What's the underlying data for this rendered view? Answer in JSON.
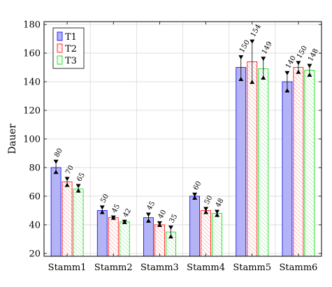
{
  "chart_data": {
    "type": "bar",
    "title": "",
    "xlabel": "",
    "ylabel": "Dauer",
    "categories": [
      "Stamm1",
      "Stamm2",
      "Stamm3",
      "Stamm4",
      "Stamm5",
      "Stamm6"
    ],
    "ylim": [
      18,
      182
    ],
    "yticks": [
      20,
      40,
      60,
      80,
      100,
      120,
      140,
      160,
      180
    ],
    "grid": true,
    "legend_position": "top-left",
    "series": [
      {
        "name": "T1",
        "values": [
          80,
          50,
          45,
          60,
          150,
          140
        ],
        "error_low": [
          76,
          48,
          42,
          58,
          141,
          133
        ],
        "error_high": [
          85,
          53,
          48,
          62,
          158,
          147
        ],
        "color": "#0000ff",
        "fill": "#b3b3f5",
        "pattern": "solid"
      },
      {
        "name": "T2",
        "values": [
          70,
          45,
          40,
          50,
          154,
          150
        ],
        "error_low": [
          67,
          44,
          39,
          48,
          139,
          146
        ],
        "error_high": [
          73,
          46,
          42,
          52,
          169,
          154
        ],
        "color": "#ff0000",
        "fill": "#ffffff",
        "pattern": "hatched"
      },
      {
        "name": "T3",
        "values": [
          65,
          42,
          35,
          48,
          149,
          148
        ],
        "error_low": [
          63,
          41,
          31,
          46,
          142,
          144
        ],
        "error_high": [
          68,
          43,
          39,
          50,
          157,
          152
        ],
        "color": "#00dd00",
        "fill": "#ffffff",
        "pattern": "hatched"
      }
    ]
  }
}
